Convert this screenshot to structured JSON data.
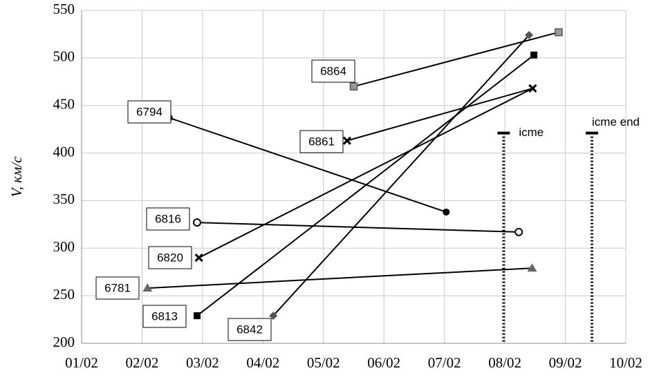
{
  "chart_data": {
    "type": "line",
    "y_label": "V, км/с",
    "xlim": [
      1,
      10
    ],
    "xticks": [
      {
        "value": 1,
        "label": "01/02"
      },
      {
        "value": 2,
        "label": "02/02"
      },
      {
        "value": 3,
        "label": "03/02"
      },
      {
        "value": 4,
        "label": "04/02"
      },
      {
        "value": 5,
        "label": "05/02"
      },
      {
        "value": 6,
        "label": "06/02"
      },
      {
        "value": 7,
        "label": "07/02"
      },
      {
        "value": 8,
        "label": "08/02"
      },
      {
        "value": 9,
        "label": "09/02"
      },
      {
        "value": 10,
        "label": "10/02"
      }
    ],
    "ylim": [
      200,
      550
    ],
    "yticks": [
      200,
      250,
      300,
      350,
      400,
      450,
      500,
      550
    ],
    "grid": true,
    "color": "#000000",
    "series": [
      {
        "name": "6794",
        "marker": "circle",
        "x": [
          2.45,
          7.03
        ],
        "values": [
          437,
          338
        ]
      },
      {
        "name": "6864",
        "marker": "square-gray",
        "x": [
          5.5,
          8.89
        ],
        "values": [
          470,
          527
        ]
      },
      {
        "name": "6861",
        "marker": "x",
        "x": [
          5.39,
          8.46
        ],
        "values": [
          413,
          468
        ]
      },
      {
        "name": "6816",
        "marker": "circle-open",
        "x": [
          2.91,
          8.23
        ],
        "values": [
          327,
          317
        ]
      },
      {
        "name": "6820",
        "marker": "x",
        "x": [
          2.94,
          8.46
        ],
        "values": [
          290,
          468
        ]
      },
      {
        "name": "6781",
        "marker": "triangle",
        "x": [
          2.09,
          8.45
        ],
        "values": [
          258,
          279
        ]
      },
      {
        "name": "6813",
        "marker": "square",
        "x": [
          2.91,
          8.48
        ],
        "values": [
          229,
          503
        ]
      },
      {
        "name": "6842",
        "marker": "diamond",
        "x": [
          4.17,
          8.4
        ],
        "values": [
          229,
          524
        ]
      }
    ],
    "annotations": [
      {
        "text": "icme",
        "x": 7.98,
        "y": 421
      },
      {
        "text": "icme end",
        "x": 9.44,
        "y": 421
      }
    ]
  }
}
